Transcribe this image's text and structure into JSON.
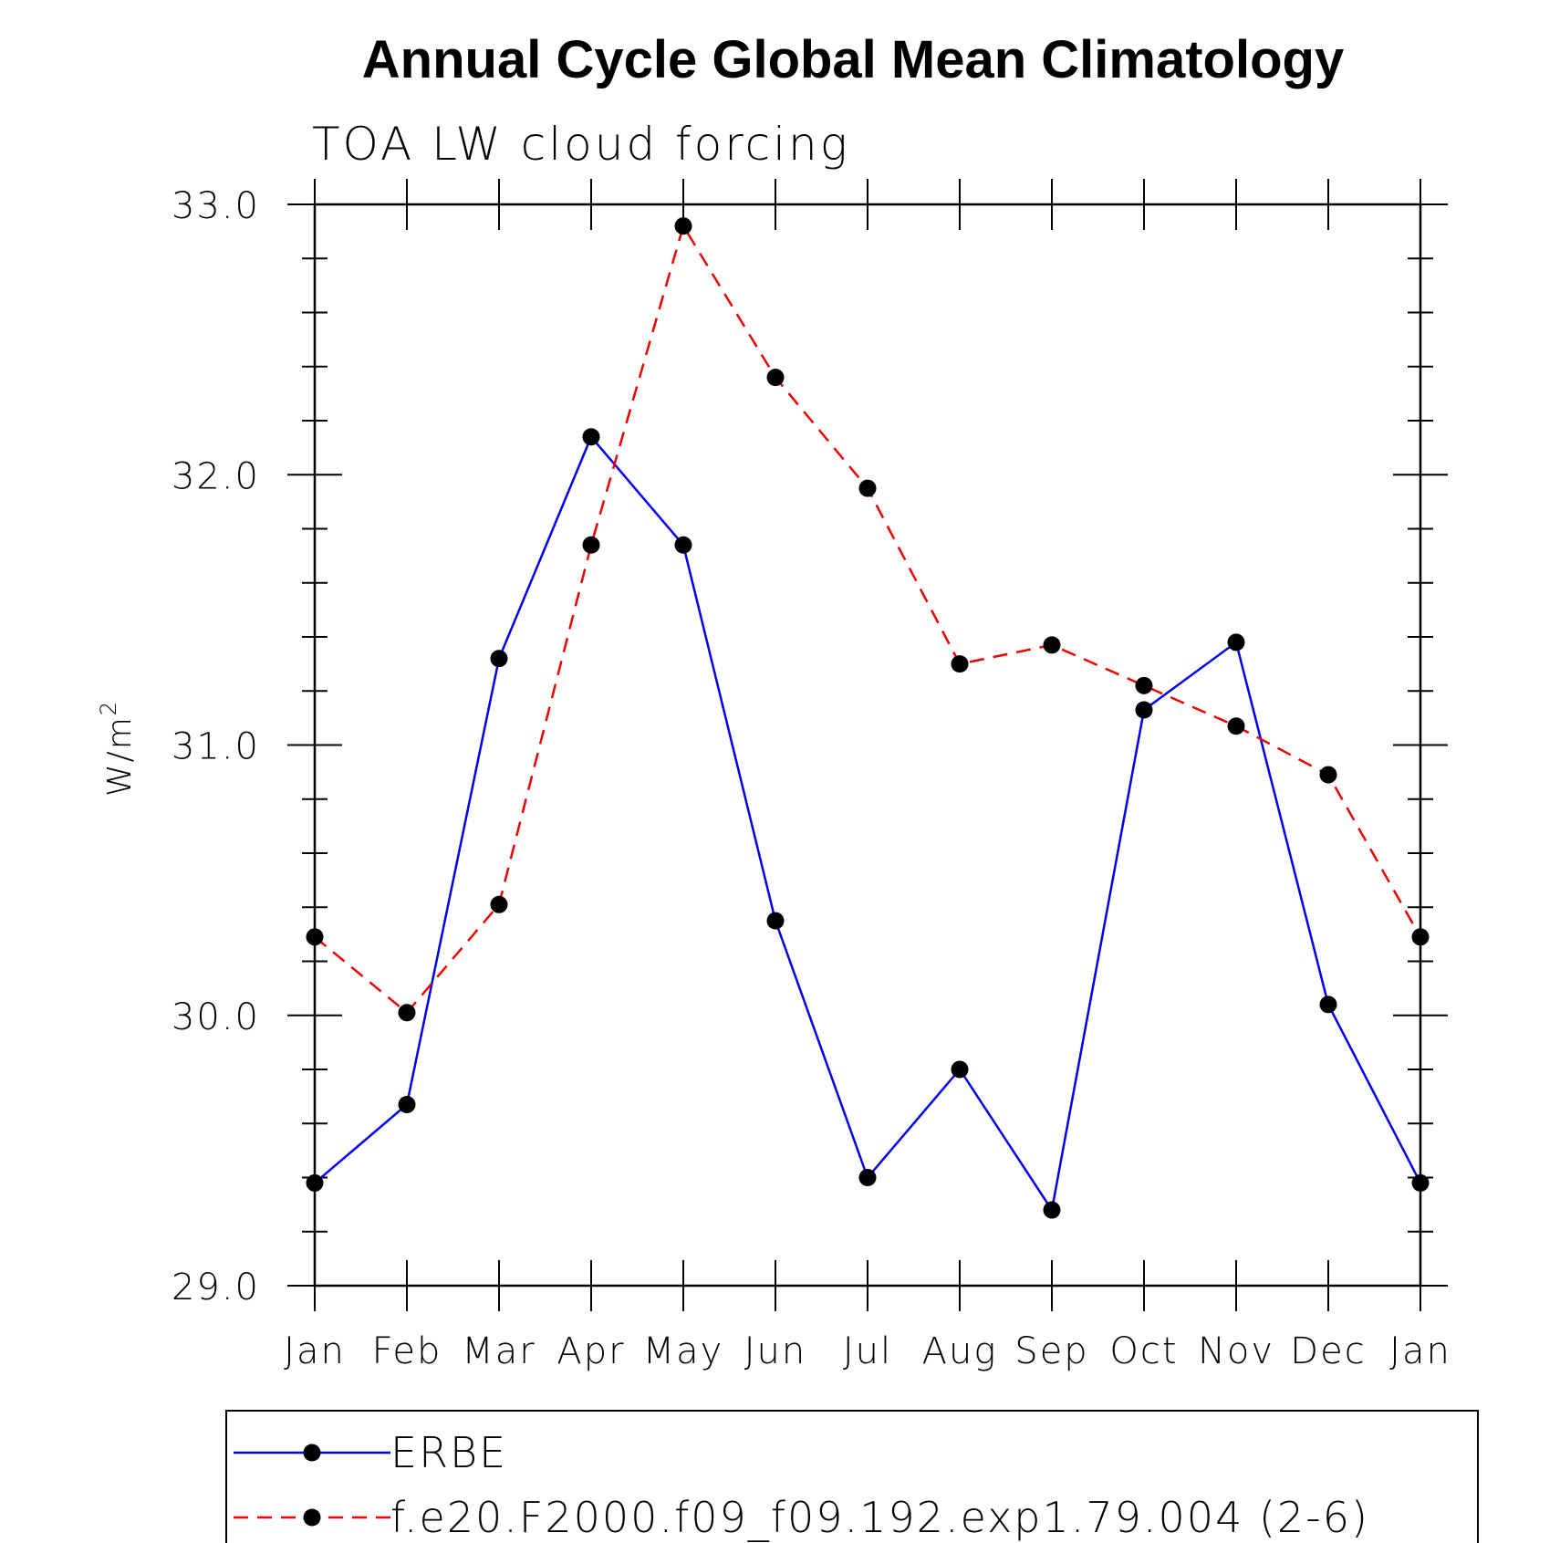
{
  "chart_data": {
    "type": "line",
    "title": "Annual Cycle Global Mean Climatology",
    "subtitle": "TOA LW cloud forcing",
    "ylabel": "W/m",
    "ylabel_superscript": "2",
    "ylim": [
      29.0,
      33.0
    ],
    "ytick_labels": [
      "29.0",
      "30.0",
      "31.0",
      "32.0",
      "33.0"
    ],
    "categories": [
      "Jan",
      "Feb",
      "Mar",
      "Apr",
      "May",
      "Jun",
      "Jul",
      "Aug",
      "Sep",
      "Oct",
      "Nov",
      "Dec",
      "Jan"
    ],
    "series": [
      {
        "name": "ERBE",
        "color": "#0000ee",
        "dashed": false,
        "values": [
          29.38,
          29.67,
          31.32,
          32.14,
          31.74,
          30.35,
          29.4,
          29.8,
          29.28,
          31.13,
          31.38,
          30.04,
          29.38
        ]
      },
      {
        "name": "f.e20.F2000.f09_f09.192.exp1.79.004 (2-6)",
        "color": "#ee0000",
        "dashed": true,
        "values": [
          30.29,
          30.01,
          30.41,
          31.74,
          32.92,
          32.36,
          31.95,
          31.3,
          31.37,
          31.22,
          31.07,
          30.89,
          30.29
        ]
      }
    ],
    "legend_position": "bottom"
  }
}
